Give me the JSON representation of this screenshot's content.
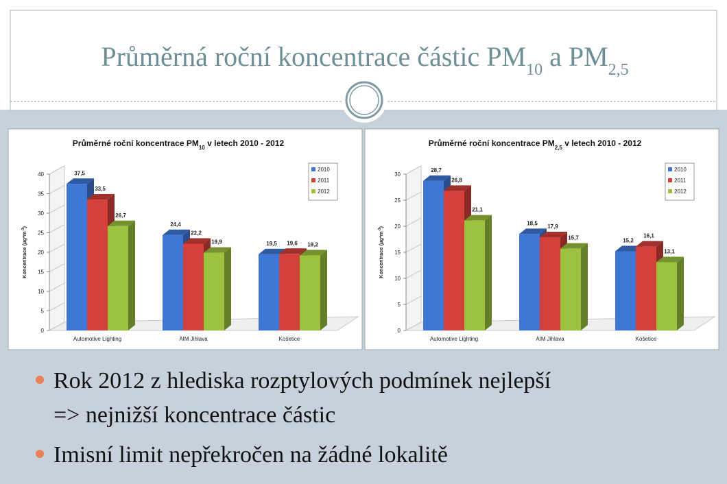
{
  "slide": {
    "title": [
      "Průměrná roční koncentrace částic PM",
      "10",
      " a PM",
      "2,5"
    ],
    "bullets": [
      [
        "Rok 2012 z hlediska rozptylových podmínek nejlepší",
        "=> nejnižší koncentrace částic"
      ],
      [
        "Imisní limit nepřekročen na žádné lokalitě"
      ]
    ]
  },
  "chart_data": [
    {
      "type": "bar3d",
      "title": [
        "Průměrné roční koncentrace PM",
        "10",
        " v letech 2010 - 2012"
      ],
      "y_label": [
        "Koncentrace (µg*m",
        "-3",
        ")"
      ],
      "categories": [
        "Automotive Lighting",
        "AIM Jihlava",
        "Košetice"
      ],
      "series": [
        {
          "name": "2010",
          "color": "#3f77d6",
          "values": [
            37.5,
            24.4,
            19.5
          ],
          "value_labels": [
            "37,5",
            "24,4",
            "19,5"
          ]
        },
        {
          "name": "2011",
          "color": "#d4403a",
          "values": [
            33.5,
            22.2,
            19.6
          ],
          "value_labels": [
            "33,5",
            "22,2",
            "19,6"
          ]
        },
        {
          "name": "2012",
          "color": "#9cc23f",
          "values": [
            26.7,
            19.9,
            19.2
          ],
          "value_labels": [
            "26,7",
            "19,9",
            "19,2"
          ]
        }
      ],
      "ylim": [
        0,
        40
      ],
      "yticks": [
        0,
        5,
        10,
        15,
        20,
        25,
        30,
        35,
        40
      ],
      "legend": "top-right"
    },
    {
      "type": "bar3d",
      "title": [
        "Průměrné roční koncentrace PM",
        "2,5",
        " v letech 2010 - 2012"
      ],
      "y_label": [
        "Koncentrace (µg*m",
        "-3",
        ")"
      ],
      "categories": [
        "Automotive Lighting",
        "AIM Jihlava",
        "Košetice"
      ],
      "series": [
        {
          "name": "2010",
          "color": "#3f77d6",
          "values": [
            28.7,
            18.5,
            15.2
          ],
          "value_labels": [
            "28,7",
            "18,5",
            "15,2"
          ]
        },
        {
          "name": "2011",
          "color": "#d4403a",
          "values": [
            26.8,
            17.9,
            16.1
          ],
          "value_labels": [
            "26,8",
            "17,9",
            "16,1"
          ]
        },
        {
          "name": "2012",
          "color": "#9cc23f",
          "values": [
            21.1,
            15.7,
            13.1
          ],
          "value_labels": [
            "21,1",
            "15,7",
            "13,1"
          ]
        }
      ],
      "ylim": [
        0,
        30
      ],
      "yticks": [
        0,
        5,
        10,
        15,
        20,
        25,
        30
      ],
      "legend": "top-right"
    }
  ]
}
